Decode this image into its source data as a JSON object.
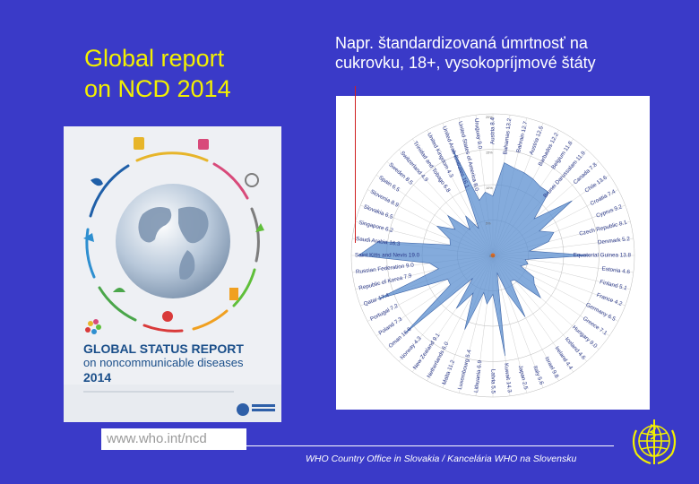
{
  "slide": {
    "title_line1": "Global report",
    "title_line2": "on NCD 2014",
    "subtitle_line1": "Napr. štandardizovaná úmrtnosť na",
    "subtitle_line2": "cukrovku, 18+, vysokopríjmové štáty",
    "url": "www.who.int/ncd",
    "footer": "WHO Country Office in Slovakia / Kancelária WHO na Slovensku"
  },
  "cover": {
    "title": "GLOBAL STATUS REPORT",
    "subtitle": "on noncommunicable diseases",
    "year": "2014"
  },
  "colors": {
    "background": "#3a3ac8",
    "title": "#f3f000",
    "radar_fill": "#5b8fd0",
    "radar_line": "#4a6fb0"
  },
  "chart_data": {
    "type": "radar",
    "center_label": "0%",
    "ring_labels": [
      "5%",
      "10%",
      "15%",
      "20%"
    ],
    "rmax": 20,
    "categories": [
      "Austria 8.4",
      "Bahamas 13.2",
      "Bahrain 12.7",
      "Austria 12.5",
      "Barbados 12.2",
      "Belgium 11.8",
      "Brunei Darussalam 11.9",
      "Canada 7.8",
      "Chile 13.6",
      "Croatia 7.4",
      "Cyprus 9.2",
      "Czech Republic 8.1",
      "Denmark 5.2",
      "Equatorial Guinea 13.8",
      "Estonia 4.6",
      "Finland 5.1",
      "France 4.2",
      "Germany 6.5",
      "Greece 7.1",
      "Hungary 9.0",
      "Iceland 4.6",
      "Ireland 4.4",
      "Israel 9.8",
      "Italy 5.6",
      "Japan 2.5",
      "Kuwait 14.3",
      "Latvia 5.5",
      "Lithuania 6.9",
      "Luxembourg 5.4",
      "Malta 11.2",
      "Netherlands 6.0",
      "New Zealand 9.1",
      "Norway 4.3",
      "Oman 16.6",
      "Poland 7.3",
      "Portugal 7.2",
      "Qatar 17.4",
      "Republic of Korea 7.9",
      "Russian Federation 9.0",
      "Saint Kitts and Nevis 19.0",
      "Saudi Arabia 16.3",
      "Singapore 6.2",
      "Slovakia 6.5",
      "Slovenia 8.9",
      "Spain 6.5",
      "Sweden 8.5",
      "Switzerland 4.9",
      "Trinidad and Tobago 6.8",
      "United Kingdom 4.3",
      "United Arab Emirates 16.1",
      "United States of America 8.0",
      "Uruguay 9.0"
    ],
    "values": [
      8.4,
      13.2,
      12.7,
      12.5,
      12.2,
      11.8,
      11.9,
      7.8,
      13.6,
      7.4,
      9.2,
      8.1,
      5.2,
      13.8,
      4.6,
      5.1,
      4.2,
      6.5,
      7.1,
      9.0,
      4.6,
      4.4,
      9.8,
      5.6,
      2.5,
      14.3,
      5.5,
      6.9,
      5.4,
      11.2,
      6.0,
      9.1,
      4.3,
      16.6,
      7.3,
      7.2,
      17.4,
      7.9,
      9.0,
      19.0,
      16.3,
      6.2,
      6.5,
      8.9,
      6.5,
      8.5,
      4.9,
      6.8,
      4.3,
      16.1,
      8.0,
      9.0
    ]
  }
}
